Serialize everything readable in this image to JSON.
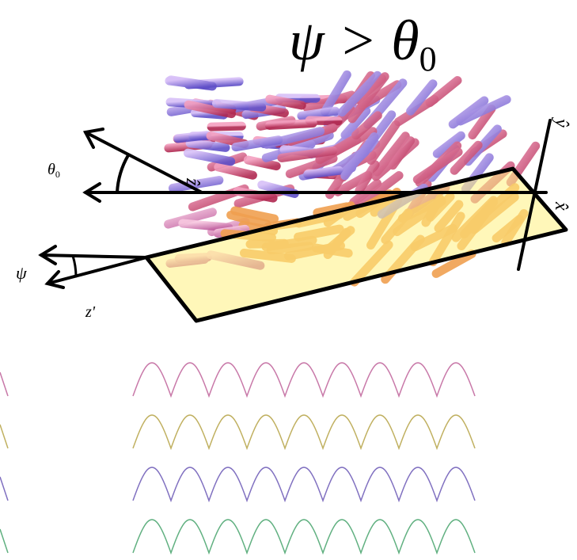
{
  "title": {
    "text": "ψ > θ",
    "subscript": "0"
  },
  "labels": {
    "theta0": {
      "text": "θ",
      "subscript": "0"
    },
    "z_hat": "ẑ",
    "y_hat": "ŷ",
    "x_hat": "x̂",
    "psi": "ψ",
    "z_prime": "z'"
  }
}
